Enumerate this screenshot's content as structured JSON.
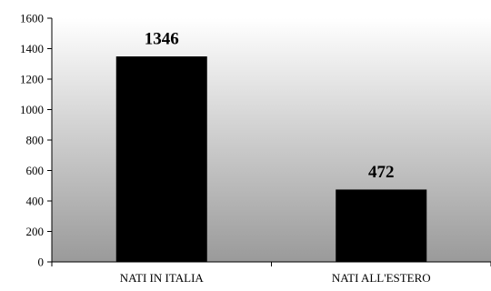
{
  "chart_data": {
    "type": "bar",
    "categories": [
      "NATI IN ITALIA",
      "NATI ALL'ESTERO"
    ],
    "values": [
      1346,
      472
    ],
    "data_labels": [
      "1346",
      "472"
    ],
    "title": "",
    "xlabel": "",
    "ylabel": "",
    "ylim": [
      0,
      1600
    ],
    "yticks": [
      0,
      200,
      400,
      600,
      800,
      1000,
      1200,
      1400,
      1600
    ],
    "ytick_labels": [
      "0",
      "200",
      "400",
      "600",
      "800",
      "1000",
      "1200",
      "1400",
      "1600"
    ],
    "grid": false,
    "legend": "none",
    "colors": {
      "bar": "#000000",
      "plot_gradient_top": "#ffffff",
      "plot_gradient_bottom": "#9a9a9a",
      "axis": "#000000"
    }
  }
}
